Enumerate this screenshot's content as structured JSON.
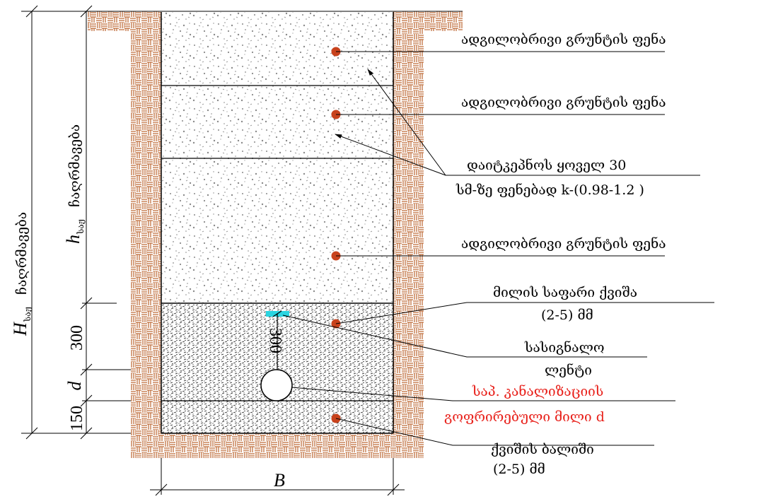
{
  "labels": {
    "layer_top": "ადგილობრივი გრუნტის ფენა",
    "layer_mid": "ადგილობრივი გრუნტის ფენა",
    "compaction_line1": "დაიტკეპნოს ყოველ 30",
    "compaction_line2": "სმ-ზე ფენებად k-(0.98-1.2 )",
    "layer_low": "ადგილობრივი გრუნტის ფენა",
    "sand_line1": "მილის საფარი ქვიშა",
    "sand_line2": "(2-5) მმ",
    "tape_line1": "სასიგნალო",
    "tape_line2": "ლენტი",
    "pipe_line1": "საპ. კანალიზაციის",
    "pipe_line2": "გოფრირებული მილი d",
    "bed_line1": "ქვიშის ბალიში",
    "bed_line2": "(2-5) მმ"
  },
  "dimensions": {
    "H_main": "H",
    "H_sub": "საჟ",
    "H_word": "ჩაღრმავება",
    "h_main": "h",
    "h_sub": "საჟ",
    "h_word": "ჩაღრმავება",
    "d300": "300",
    "d_pipe": "d",
    "d150": "150",
    "d300_inner": "300",
    "B": "B"
  },
  "colors": {
    "brick": "#c0713f",
    "marker": "#c8421c",
    "tape": "#29d4e0",
    "red_text": "#e8201a"
  }
}
